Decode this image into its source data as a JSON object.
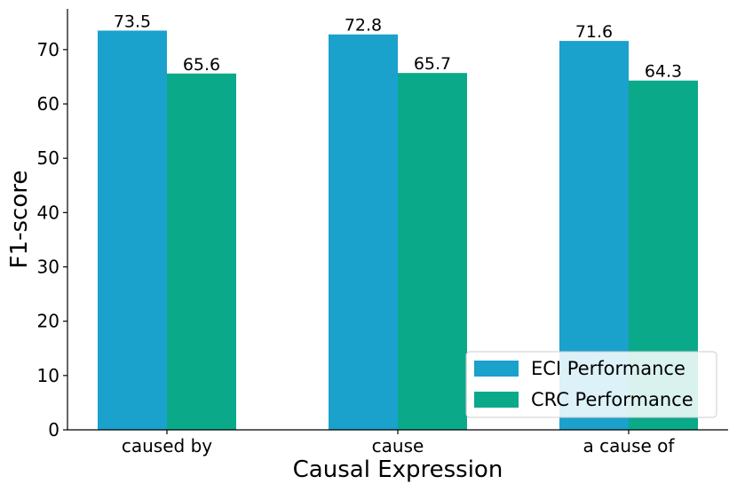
{
  "chart_data": {
    "type": "bar",
    "categories": [
      "caused by",
      "cause",
      "a cause of"
    ],
    "series": [
      {
        "name": "ECI Performance",
        "values": [
          73.5,
          72.8,
          71.6
        ],
        "color": "#1aa1cc"
      },
      {
        "name": "CRC Performance",
        "values": [
          65.6,
          65.7,
          64.3
        ],
        "color": "#0aa98a"
      }
    ],
    "data_labels": [
      [
        "73.5",
        "72.8",
        "71.6"
      ],
      [
        "65.6",
        "65.7",
        "64.3"
      ]
    ],
    "xlabel": "Causal Expression",
    "ylabel": "F1-score",
    "ylim": [
      0,
      77.5
    ],
    "yticks": [
      0,
      10,
      20,
      30,
      40,
      50,
      60,
      70
    ],
    "grid": false,
    "legend_position": "lower-right"
  }
}
